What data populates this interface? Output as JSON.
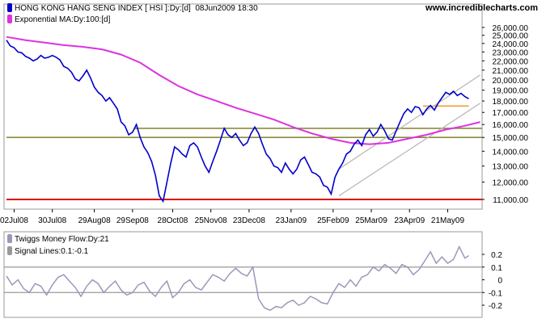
{
  "colors": {
    "price": "#0000cc",
    "ema": "#dd33dd",
    "money_flow": "#9999bb",
    "signal": "#999999",
    "support_olive": "#8b8b3a",
    "support_red": "#e00000",
    "resistance_orange": "#f0a030",
    "channel": "#bbbbbb",
    "legend_box": "#333399",
    "grid_border": "#999999"
  },
  "watermark": "www.incrediblecharts.com",
  "chart_data": [
    {
      "type": "line",
      "panel": "price",
      "legend": [
        {
          "label": "HONG KONG HANG SENG INDEX [ HSI ]:Dy:[d]  08Jun2009 18:30",
          "color": "#0000cc"
        },
        {
          "label": "Exponential MA:Dy:100:[d]",
          "color": "#dd33dd"
        }
      ],
      "y_ticks": [
        "26,000.00",
        "25,000.00",
        "24,000.00",
        "23,000.00",
        "22,000.00",
        "21,000.00",
        "20,000.00",
        "19,000.00",
        "18,000.00",
        "17,000.00",
        "16,000.00",
        "15,000.00",
        "14,000.00",
        "13,000.00",
        "12,000.00",
        "11,000.00"
      ],
      "y_tick_values": [
        26000,
        25000,
        24000,
        23000,
        22000,
        21000,
        20000,
        19000,
        18000,
        17000,
        16000,
        15000,
        14000,
        13000,
        12000,
        11000
      ],
      "scale": "log",
      "ylim": [
        10400,
        26500
      ],
      "x_ticks": [
        "02Jul08",
        "30Jul08",
        "29Aug08",
        "29Sep08",
        "28Oct08",
        "25Nov08",
        "23Dec08",
        "23Jan09",
        "25Feb09",
        "25Mar09",
        "23Apr09",
        "21May09"
      ],
      "x_tick_days": [
        4,
        24,
        46,
        66,
        87,
        107,
        127,
        149,
        171,
        191,
        211,
        231
      ],
      "x_range_days": [
        0,
        249
      ],
      "series": [
        {
          "role": "price",
          "days": [
            0,
            2,
            4,
            6,
            8,
            10,
            12,
            14,
            16,
            18,
            20,
            22,
            24,
            26,
            28,
            30,
            32,
            34,
            36,
            38,
            40,
            42,
            44,
            46,
            48,
            50,
            52,
            54,
            56,
            58,
            60,
            62,
            64,
            66,
            68,
            70,
            72,
            74,
            76,
            78,
            80,
            82,
            84,
            86,
            88,
            90,
            92,
            94,
            96,
            98,
            100,
            102,
            104,
            106,
            108,
            110,
            112,
            114,
            116,
            118,
            120,
            122,
            124,
            126,
            128,
            130,
            132,
            134,
            136,
            138,
            140,
            142,
            144,
            146,
            148,
            150,
            152,
            154,
            156,
            158,
            160,
            162,
            164,
            166,
            168,
            170,
            172,
            174,
            176,
            178,
            180,
            182,
            184,
            186,
            188,
            190,
            192,
            194,
            196,
            198,
            200,
            202,
            204,
            206,
            208,
            210,
            212,
            214,
            216,
            218,
            220,
            222,
            224,
            226,
            228,
            230,
            232,
            234,
            236,
            238,
            240,
            242
          ],
          "values": [
            24400,
            23700,
            23500,
            23000,
            22900,
            22500,
            22300,
            22000,
            22200,
            22600,
            22300,
            22400,
            22600,
            22400,
            22100,
            21400,
            21200,
            20800,
            20100,
            19900,
            20400,
            21000,
            20200,
            19300,
            18800,
            18500,
            18000,
            18300,
            17800,
            17300,
            16200,
            15900,
            15200,
            15400,
            16000,
            15000,
            14300,
            13900,
            13300,
            12400,
            11200,
            10900,
            12000,
            13200,
            14300,
            14100,
            13800,
            13600,
            14400,
            14600,
            14300,
            13600,
            13000,
            12600,
            13300,
            14000,
            14800,
            15700,
            15200,
            15000,
            15300,
            14800,
            14400,
            14600,
            15300,
            15800,
            15300,
            14500,
            13800,
            13500,
            13000,
            12900,
            12600,
            13200,
            12800,
            12500,
            12800,
            13400,
            13600,
            13100,
            12600,
            12500,
            12300,
            11800,
            11700,
            11300,
            12300,
            12800,
            13200,
            13800,
            14000,
            14500,
            14800,
            14400,
            15200,
            15600,
            15100,
            15400,
            16000,
            15500,
            14900,
            14800,
            15500,
            16200,
            16900,
            17300,
            17000,
            17500,
            17400,
            16800,
            17300,
            17600,
            17200,
            17800,
            18300,
            18800,
            18600,
            18900,
            18500,
            18700,
            18400,
            18200
          ]
        },
        {
          "role": "ema",
          "days": [
            0,
            10,
            20,
            30,
            40,
            50,
            60,
            70,
            80,
            90,
            100,
            110,
            120,
            130,
            140,
            150,
            160,
            170,
            180,
            190,
            200,
            210,
            220,
            230,
            240,
            248
          ],
          "values": [
            24800,
            24400,
            24100,
            23800,
            23600,
            23300,
            22700,
            21800,
            20500,
            19400,
            18600,
            18000,
            17400,
            16900,
            16400,
            15800,
            15300,
            14900,
            14600,
            14500,
            14600,
            14900,
            15200,
            15600,
            15900,
            16200
          ]
        }
      ],
      "horizontal_lines": [
        {
          "role": "support-olive-long",
          "value": 15000,
          "day_from": 0,
          "day_to": 249
        },
        {
          "role": "support-olive-short",
          "value": 15700,
          "day_from": 67,
          "day_to": 249
        },
        {
          "role": "support-red",
          "value": 11000,
          "day_from": 0,
          "day_to": 249
        },
        {
          "role": "resistance-orange",
          "value": 17550,
          "day_from": 218,
          "day_to": 242
        }
      ],
      "trend_lines": [
        {
          "role": "channel-upper",
          "day_from": 174,
          "value_from": 12800,
          "day_to": 248,
          "value_to": 20500
        },
        {
          "role": "channel-lower",
          "day_from": 174,
          "value_from": 11200,
          "day_to": 248,
          "value_to": 17800
        }
      ]
    },
    {
      "type": "line",
      "panel": "indicator",
      "legend": [
        {
          "label": "Twiggs Money Flow:Dy:21",
          "color": "#9999bb"
        },
        {
          "label": "Signal Lines:0.1:-0.1",
          "color": "#999999"
        }
      ],
      "y_ticks": [
        "0.2",
        "0.1",
        "0",
        "-0.1",
        "-0.2"
      ],
      "y_tick_values": [
        0.2,
        0.1,
        0,
        -0.1,
        -0.2
      ],
      "ylim": [
        -0.27,
        0.3
      ],
      "signal_lines": [
        0.1,
        -0.1
      ],
      "series": [
        {
          "role": "money-flow",
          "days": [
            0,
            3,
            6,
            9,
            12,
            15,
            18,
            21,
            24,
            27,
            30,
            33,
            36,
            39,
            42,
            45,
            48,
            51,
            54,
            57,
            60,
            63,
            66,
            69,
            72,
            75,
            78,
            81,
            84,
            87,
            90,
            93,
            96,
            99,
            102,
            105,
            108,
            111,
            114,
            117,
            120,
            123,
            126,
            129,
            132,
            135,
            138,
            141,
            144,
            147,
            150,
            153,
            156,
            159,
            162,
            165,
            168,
            171,
            174,
            177,
            180,
            183,
            186,
            189,
            192,
            195,
            198,
            201,
            204,
            207,
            210,
            213,
            216,
            219,
            222,
            225,
            228,
            231,
            234,
            237,
            240,
            242
          ],
          "values": [
            0.03,
            -0.04,
            0.0,
            -0.07,
            -0.1,
            -0.03,
            -0.05,
            -0.12,
            -0.04,
            0.02,
            0.04,
            -0.01,
            -0.06,
            -0.13,
            -0.05,
            0.0,
            -0.03,
            -0.1,
            -0.05,
            -0.01,
            -0.08,
            -0.12,
            -0.1,
            -0.04,
            -0.02,
            -0.09,
            -0.13,
            -0.06,
            -0.01,
            -0.14,
            -0.1,
            -0.03,
            0.0,
            -0.06,
            -0.08,
            -0.02,
            0.04,
            0.02,
            -0.01,
            0.05,
            0.09,
            0.05,
            0.03,
            0.1,
            -0.15,
            -0.22,
            -0.24,
            -0.21,
            -0.22,
            -0.18,
            -0.16,
            -0.2,
            -0.18,
            -0.13,
            -0.15,
            -0.18,
            -0.19,
            -0.1,
            -0.03,
            -0.06,
            0.0,
            -0.05,
            0.02,
            0.04,
            0.1,
            0.07,
            0.12,
            0.09,
            0.05,
            0.12,
            0.1,
            0.04,
            0.08,
            0.15,
            0.22,
            0.13,
            0.18,
            0.13,
            0.16,
            0.26,
            0.17,
            0.19
          ]
        }
      ]
    }
  ]
}
